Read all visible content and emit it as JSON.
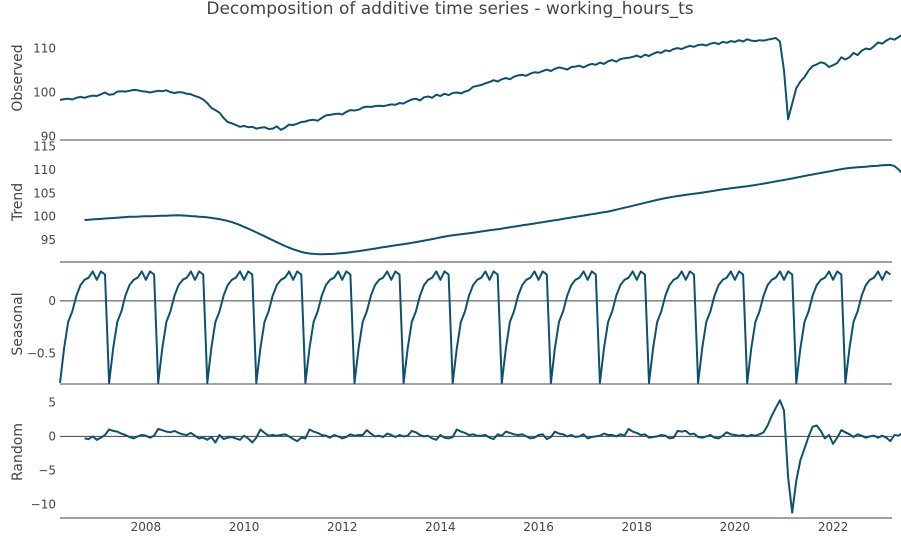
{
  "chart_data": {
    "type": "line",
    "title": "Decomposition of additive time series - working_hours_ts",
    "color": "#0d5170",
    "x_ticks": [
      "2008",
      "2010",
      "2012",
      "2014",
      "2016",
      "2018",
      "2020",
      "2022"
    ],
    "x_range": [
      2006.25,
      2023.2
    ],
    "panels": [
      {
        "ylabel": "Observed",
        "ylim": [
          89.2,
          117.4
        ],
        "yticks": [
          "90",
          "100",
          "110"
        ],
        "start": 2006.25,
        "step": 0.083333,
        "values": [
          98.3,
          98.5,
          98.6,
          98.4,
          98.8,
          99.0,
          98.8,
          99.1,
          99.3,
          99.2,
          99.6,
          100.0,
          99.5,
          99.6,
          100.2,
          100.3,
          100.2,
          100.4,
          100.6,
          100.5,
          100.3,
          100.2,
          100.0,
          100.2,
          100.4,
          100.3,
          100.5,
          100.1,
          99.9,
          100.1,
          100.0,
          99.7,
          99.6,
          99.2,
          98.9,
          98.4,
          97.6,
          96.5,
          96.0,
          95.4,
          94.2,
          93.3,
          93.0,
          92.6,
          92.2,
          92.4,
          92.1,
          92.2,
          91.8,
          92.0,
          92.1,
          91.7,
          91.8,
          92.3,
          91.5,
          92.0,
          92.7,
          92.6,
          92.9,
          93.3,
          93.4,
          93.7,
          93.8,
          93.6,
          94.2,
          94.8,
          94.9,
          95.1,
          95.2,
          95.0,
          95.6,
          96.0,
          95.9,
          96.1,
          96.6,
          96.8,
          96.7,
          96.9,
          97.0,
          96.9,
          97.1,
          97.3,
          97.2,
          97.6,
          97.5,
          98.0,
          98.4,
          98.6,
          98.2,
          98.9,
          99.1,
          98.8,
          99.5,
          99.2,
          99.7,
          99.4,
          99.9,
          100.0,
          99.8,
          100.2,
          100.5,
          101.3,
          101.5,
          101.7,
          102.1,
          102.4,
          102.8,
          102.5,
          103.0,
          103.3,
          103.0,
          103.6,
          103.9,
          104.0,
          103.8,
          104.3,
          104.6,
          104.5,
          104.9,
          105.2,
          104.9,
          105.4,
          105.7,
          105.5,
          105.2,
          105.8,
          105.9,
          106.1,
          105.7,
          106.2,
          106.5,
          106.3,
          106.8,
          106.5,
          107.1,
          107.4,
          107.0,
          107.6,
          107.8,
          107.9,
          108.1,
          108.4,
          108.0,
          108.6,
          108.3,
          108.8,
          109.2,
          109.0,
          109.6,
          109.4,
          109.9,
          110.1,
          109.9,
          110.3,
          110.6,
          110.4,
          110.8,
          110.9,
          110.7,
          111.1,
          111.3,
          111.0,
          111.5,
          111.3,
          111.7,
          111.5,
          111.9,
          111.6,
          112.1,
          111.8,
          111.7,
          111.9,
          111.8,
          112.0,
          112.2,
          112.4,
          111.6,
          105.0,
          93.9,
          97.5,
          101.0,
          102.5,
          103.5,
          105.0,
          106.0,
          106.4,
          106.9,
          106.6,
          105.8,
          106.2,
          106.7,
          108.0,
          107.5,
          108.0,
          109.0,
          108.5,
          109.5,
          110.0,
          109.8,
          110.5,
          111.4,
          111.1,
          111.8,
          112.3,
          112.0,
          112.6,
          113.2,
          113.5,
          113.4,
          113.8,
          114.3,
          114.0,
          114.6,
          115.0,
          114.8,
          115.2,
          115.5,
          115.3,
          116.0,
          116.3,
          116.0,
          116.8,
          116.7
        ],
        "baseline": null
      },
      {
        "ylabel": "Trend",
        "ylim": [
          90.3,
          116.0
        ],
        "yticks": [
          "95",
          "100",
          "105",
          "110",
          "115"
        ],
        "start": 2006.75,
        "step": 0.083333,
        "values": [
          99.3,
          99.36,
          99.42,
          99.48,
          99.54,
          99.61,
          99.67,
          99.73,
          99.79,
          99.85,
          99.91,
          99.97,
          100.0,
          100.03,
          100.06,
          100.08,
          100.11,
          100.14,
          100.17,
          100.19,
          100.22,
          100.25,
          100.28,
          100.3,
          100.25,
          100.2,
          100.13,
          100.08,
          100.01,
          99.95,
          99.86,
          99.74,
          99.61,
          99.48,
          99.3,
          99.1,
          98.85,
          98.55,
          98.2,
          97.82,
          97.45,
          97.05,
          96.65,
          96.24,
          95.82,
          95.38,
          94.96,
          94.54,
          94.13,
          93.72,
          93.37,
          93.03,
          92.74,
          92.46,
          92.25,
          92.11,
          92.03,
          92.0,
          91.97,
          91.99,
          92.01,
          92.04,
          92.11,
          92.2,
          92.3,
          92.4,
          92.52,
          92.64,
          92.77,
          92.9,
          93.04,
          93.18,
          93.32,
          93.46,
          93.6,
          93.73,
          93.87,
          94.0,
          94.13,
          94.27,
          94.41,
          94.56,
          94.72,
          94.88,
          95.04,
          95.21,
          95.38,
          95.56,
          95.74,
          95.9,
          96.01,
          96.12,
          96.23,
          96.34,
          96.45,
          96.57,
          96.7,
          96.83,
          96.96,
          97.08,
          97.2,
          97.33,
          97.46,
          97.6,
          97.74,
          97.88,
          98.02,
          98.15,
          98.28,
          98.41,
          98.55,
          98.69,
          98.83,
          98.97,
          99.11,
          99.25,
          99.39,
          99.54,
          99.68,
          99.82,
          99.96,
          100.1,
          100.24,
          100.38,
          100.53,
          100.67,
          100.81,
          100.96,
          101.1,
          101.3,
          101.5,
          101.71,
          101.92,
          102.13,
          102.34,
          102.55,
          102.76,
          102.97,
          103.18,
          103.39,
          103.6,
          103.8,
          103.98,
          104.14,
          104.29,
          104.43,
          104.55,
          104.67,
          104.79,
          104.91,
          105.03,
          105.16,
          105.29,
          105.43,
          105.57,
          105.71,
          105.84,
          105.96,
          106.08,
          106.2,
          106.31,
          106.42,
          106.54,
          106.66,
          106.8,
          106.95,
          107.1,
          107.25,
          107.4,
          107.56,
          107.72,
          107.87,
          108.03,
          108.19,
          108.37,
          108.54,
          108.72,
          108.89,
          109.05,
          109.21,
          109.37,
          109.53,
          109.69,
          109.86,
          110.02,
          110.18,
          110.32,
          110.43,
          110.51,
          110.58,
          110.65,
          110.72,
          110.79,
          110.86,
          110.93,
          111.01,
          111.06,
          111.09,
          110.83,
          110.14,
          109.19,
          108.17,
          107.31,
          106.53,
          105.88,
          105.35,
          104.94,
          104.54,
          104.14,
          103.77,
          103.47,
          103.79,
          104.57,
          105.43,
          106.01,
          106.55,
          107.04,
          107.52,
          107.95,
          108.37,
          108.81,
          109.26,
          109.72,
          110.2,
          110.55,
          110.92,
          111.28,
          111.64,
          112.02,
          112.4,
          112.77,
          113.11,
          113.4,
          113.66,
          113.89,
          114.09,
          114.33,
          114.57
        ],
        "baseline": null
      },
      {
        "ylabel": "Seasonal",
        "ylim": [
          -0.79,
          0.35
        ],
        "yticks": [
          "0",
          "−0.5"
        ],
        "start": 2006.25,
        "step": 0.083333,
        "values": [
          -0.78,
          -0.45,
          -0.2,
          -0.1,
          0.05,
          0.15,
          0.2,
          0.22,
          0.28,
          0.2,
          0.28,
          0.25
        ],
        "repeat": true,
        "baseline": 0
      },
      {
        "ylabel": "Random",
        "ylim": [
          -12.0,
          7.4
        ],
        "yticks": [
          "5",
          "0",
          "−5",
          "−10"
        ],
        "start": 2006.75,
        "step": 0.083333,
        "values": [
          -0.3,
          -0.4,
          0.0,
          -0.5,
          -0.2,
          0.2,
          1.0,
          0.8,
          0.7,
          0.4,
          0.2,
          -0.1,
          -0.3,
          0.0,
          0.2,
          0.1,
          -0.2,
          0.1,
          1.1,
          0.9,
          0.7,
          0.6,
          0.8,
          0.5,
          0.3,
          0.2,
          0.5,
          0.1,
          -0.3,
          -0.2,
          -0.5,
          -0.1,
          -0.9,
          0.2,
          -0.4,
          -0.2,
          -0.1,
          -0.3,
          -0.5,
          0.1,
          -0.3,
          -0.9,
          -0.2,
          1.0,
          0.5,
          0.1,
          0.2,
          0.1,
          0.2,
          0.3,
          0.0,
          -0.4,
          -0.7,
          -0.2,
          -0.3,
          1.0,
          0.7,
          0.5,
          0.2,
          0.1,
          -0.2,
          0.2,
          0.0,
          -0.3,
          -0.1,
          0.3,
          0.1,
          0.2,
          0.2,
          0.9,
          0.4,
          0.0,
          0.1,
          -0.1,
          0.4,
          0.2,
          -0.1,
          0.2,
          0.0,
          0.1,
          0.8,
          0.6,
          0.2,
          0.0,
          0.1,
          -0.3,
          -0.5,
          0.2,
          -0.2,
          -0.3,
          -0.1,
          1.0,
          0.7,
          0.5,
          0.2,
          0.3,
          0.1,
          0.1,
          0.2,
          -0.2,
          -0.4,
          0.3,
          0.1,
          0.7,
          0.5,
          0.3,
          0.2,
          0.3,
          0.0,
          -0.3,
          -0.2,
          0.2,
          0.3,
          -0.4,
          -0.1,
          0.7,
          0.4,
          0.3,
          0.0,
          0.2,
          -0.1,
          0.0,
          0.3,
          -0.3,
          -0.1,
          0.0,
          0.1,
          0.4,
          0.2,
          0.2,
          0.0,
          0.3,
          0.1,
          1.1,
          0.7,
          0.5,
          0.2,
          0.3,
          -0.2,
          -0.1,
          0.0,
          0.2,
          0.1,
          -0.3,
          -0.2,
          0.8,
          0.7,
          0.8,
          0.3,
          0.4,
          -0.1,
          -0.2,
          0.0,
          0.2,
          -0.2,
          -0.3,
          0.1,
          0.6,
          0.3,
          0.2,
          0.1,
          0.2,
          0.0,
          0.2,
          0.1,
          0.3,
          0.6,
          1.6,
          3.0,
          4.2,
          5.3,
          3.8,
          -6.0,
          -11.2,
          -6.5,
          -3.5,
          -1.8,
          0.0,
          1.4,
          1.6,
          0.8,
          -0.3,
          0.2,
          -1.1,
          -0.2,
          0.9,
          0.6,
          0.3,
          -0.1,
          0.3,
          0.1,
          -0.2,
          0.0,
          0.1,
          -0.2,
          0.1,
          -0.2,
          -0.7,
          0.2,
          0.1,
          0.5,
          0.8,
          0.6,
          0.5,
          0.4,
          0.6,
          -0.1,
          0.3
        ],
        "baseline": 0
      }
    ]
  }
}
